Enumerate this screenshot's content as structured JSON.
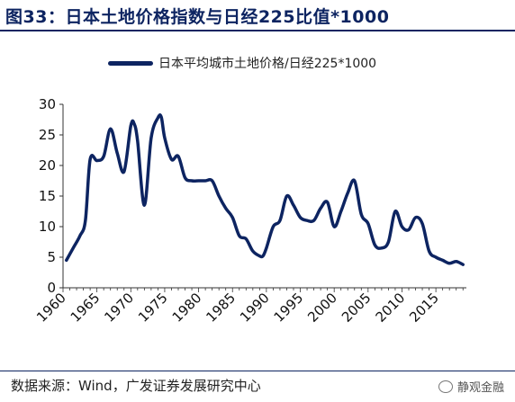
{
  "title": "图33：日本土地价格指数与日经225比值*1000",
  "source": "数据来源：Wind，广发证券发展研究中心",
  "watermark": "静观金融",
  "watermark_icon": "wechat-icon",
  "colors": {
    "line": "#0d2461",
    "title": "#0d2461"
  },
  "chart_data": {
    "type": "line",
    "title": "图33：日本土地价格指数与日经225比值*1000",
    "xlabel": "",
    "ylabel": "",
    "xlim": [
      1960,
      2019.5
    ],
    "ylim": [
      0,
      30
    ],
    "x_ticks": [
      1960,
      1965,
      1970,
      1975,
      1980,
      1985,
      1990,
      1995,
      2000,
      2005,
      2010,
      2015
    ],
    "y_ticks": [
      0,
      5,
      10,
      15,
      20,
      25,
      30
    ],
    "grid": false,
    "legend": "top-center",
    "series": [
      {
        "name": "日本平均城市土地价格/日经225*1000",
        "x": [
          1960.5,
          1961.5,
          1962.5,
          1963.3,
          1964,
          1965,
          1966,
          1967,
          1968,
          1969,
          1970,
          1970.5,
          1971,
          1972,
          1973,
          1974,
          1974.5,
          1975,
          1976,
          1977,
          1978,
          1979,
          1980,
          1981,
          1982,
          1983,
          1984,
          1985,
          1986,
          1987,
          1988,
          1989,
          1989.5,
          1990,
          1991,
          1992,
          1993,
          1994,
          1995,
          1996,
          1997,
          1998,
          1999,
          2000,
          2001,
          2002,
          2003,
          2004,
          2005,
          2006,
          2007,
          2008,
          2009,
          2010,
          2011,
          2012,
          2013,
          2014,
          2015,
          2016,
          2017,
          2018,
          2019
        ],
        "values": [
          4.5,
          6.5,
          8.5,
          11.0,
          21.0,
          20.8,
          21.5,
          26.0,
          22.0,
          19.0,
          26.5,
          26.8,
          24.0,
          13.5,
          24.5,
          27.8,
          27.9,
          24.5,
          21.0,
          21.5,
          18.0,
          17.5,
          17.5,
          17.5,
          17.5,
          15.0,
          13.0,
          11.5,
          8.5,
          8.0,
          6.0,
          5.2,
          5.2,
          6.5,
          10.0,
          11.0,
          15.0,
          13.5,
          11.5,
          11.0,
          11.0,
          13.0,
          14.0,
          10.0,
          12.5,
          15.5,
          17.5,
          12.0,
          10.5,
          7.0,
          6.5,
          7.5,
          12.5,
          10.0,
          9.5,
          11.5,
          10.5,
          6.0,
          5.0,
          4.5,
          4.0,
          4.3,
          3.8
        ]
      }
    ]
  }
}
